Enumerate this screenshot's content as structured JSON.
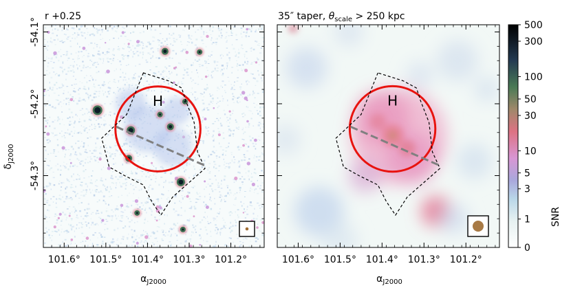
{
  "chart_data": [
    {
      "type": "heatmap",
      "panel": "left",
      "title": "r +0.25",
      "xlabel_main": "α",
      "xlabel_sub": "J2000",
      "ylabel_main": "δ",
      "ylabel_sub": "J2000",
      "xlim": [
        101.65,
        101.12
      ],
      "ylim": [
        -54.4,
        -54.09
      ],
      "xticks": [
        101.6,
        101.5,
        101.4,
        101.3,
        101.2
      ],
      "xtick_labels": [
        "101.6°",
        "101.5°",
        "101.4°",
        "101.3°",
        "101.2°"
      ],
      "yticks": [
        -54.1,
        -54.2,
        -54.3
      ],
      "ytick_labels": [
        "-54.1°",
        "-54.2°",
        "-54.3°"
      ],
      "annotation": "H",
      "circle": {
        "center": [
          101.375,
          -54.235
        ],
        "radius_deg": 0.102
      },
      "line": [
        [
          101.475,
          -54.232
        ],
        [
          101.262,
          -54.286
        ]
      ],
      "polygon": [
        [
          101.41,
          -54.157
        ],
        [
          101.45,
          -54.215
        ],
        [
          101.51,
          -54.248
        ],
        [
          101.492,
          -54.288
        ],
        [
          101.455,
          -54.3
        ],
        [
          101.41,
          -54.313
        ],
        [
          101.39,
          -54.336
        ],
        [
          101.368,
          -54.355
        ],
        [
          101.34,
          -54.33
        ],
        [
          101.262,
          -54.29
        ],
        [
          101.28,
          -54.267
        ],
        [
          101.288,
          -54.226
        ],
        [
          101.308,
          -54.196
        ],
        [
          101.318,
          -54.178
        ],
        [
          101.35,
          -54.168
        ]
      ],
      "sources": [
        [
          101.52,
          -54.209
        ],
        [
          101.44,
          -54.237
        ],
        [
          101.37,
          -54.215
        ],
        [
          101.345,
          -54.232
        ],
        [
          101.445,
          -54.276
        ],
        [
          101.32,
          -54.309
        ],
        [
          101.31,
          -54.197
        ],
        [
          101.425,
          -54.352
        ],
        [
          101.315,
          -54.375
        ],
        [
          101.358,
          -54.127
        ],
        [
          101.275,
          -54.128
        ]
      ],
      "beam_label": "beam"
    },
    {
      "type": "heatmap",
      "panel": "right",
      "title_prefix": "35″ taper, ",
      "title_theta": "θ",
      "title_sub": "scale",
      "title_suffix": " > 250 kpc",
      "xlabel_main": "α",
      "xlabel_sub": "J2000",
      "xlim": [
        101.65,
        101.12
      ],
      "ylim": [
        -54.4,
        -54.09
      ],
      "xticks": [
        101.6,
        101.5,
        101.4,
        101.3,
        101.2
      ],
      "xtick_labels": [
        "101.6°",
        "101.5°",
        "101.4°",
        "101.3°",
        "101.2°"
      ],
      "annotation": "H",
      "circle": {
        "center": [
          101.375,
          -54.235
        ],
        "radius_deg": 0.102
      },
      "line": [
        [
          101.475,
          -54.232
        ],
        [
          101.262,
          -54.286
        ]
      ],
      "polygon": [
        [
          101.41,
          -54.157
        ],
        [
          101.45,
          -54.215
        ],
        [
          101.51,
          -54.248
        ],
        [
          101.492,
          -54.288
        ],
        [
          101.455,
          -54.3
        ],
        [
          101.41,
          -54.313
        ],
        [
          101.39,
          -54.336
        ],
        [
          101.368,
          -54.355
        ],
        [
          101.34,
          -54.33
        ],
        [
          101.262,
          -54.29
        ],
        [
          101.28,
          -54.267
        ],
        [
          101.288,
          -54.226
        ],
        [
          101.308,
          -54.196
        ],
        [
          101.318,
          -54.178
        ],
        [
          101.35,
          -54.168
        ]
      ],
      "diffuse_peak": [
        101.375,
        -54.244
      ],
      "beam_label": "beam"
    },
    {
      "type": "colorbar",
      "label": "SNR",
      "scale": "asinh",
      "range": [
        0,
        500
      ],
      "ticks": [
        0,
        1,
        3,
        5,
        10,
        30,
        50,
        100,
        300,
        500
      ],
      "tick_labels": [
        "0",
        "1",
        "3",
        "5",
        "10",
        "30",
        "50",
        "100",
        "300",
        "500"
      ],
      "colors": [
        "#ffffff",
        "#e6f1f1",
        "#b9d6e8",
        "#a9a8dc",
        "#d896d4",
        "#dd7283",
        "#a0886a",
        "#4a7a55",
        "#243a52",
        "#000000"
      ]
    }
  ]
}
